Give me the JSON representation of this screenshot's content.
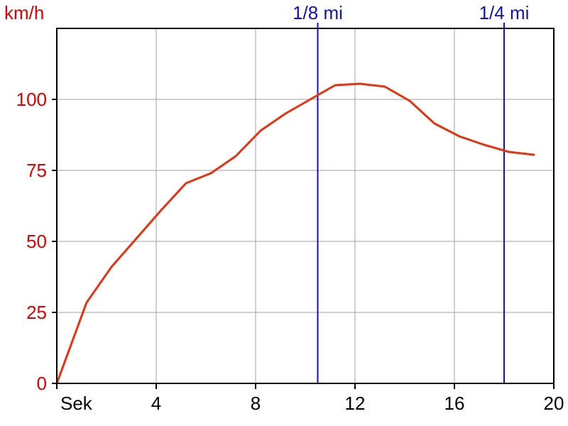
{
  "chart_data": {
    "type": "line",
    "y_unit_label": "km/h",
    "x_unit_label": "Sek",
    "xlim": [
      0,
      20
    ],
    "ylim": [
      0,
      125
    ],
    "x_ticks": [
      {
        "value": 4,
        "label": "4"
      },
      {
        "value": 8,
        "label": "8"
      },
      {
        "value": 12,
        "label": "12"
      },
      {
        "value": 16,
        "label": "16"
      },
      {
        "value": 20,
        "label": "20"
      }
    ],
    "y_ticks": [
      {
        "value": 0,
        "label": "0"
      },
      {
        "value": 25,
        "label": "25"
      },
      {
        "value": 50,
        "label": "50"
      },
      {
        "value": 75,
        "label": "75"
      },
      {
        "value": 100,
        "label": "100"
      }
    ],
    "grid": true,
    "markers": [
      {
        "x": 10.5,
        "label": "1/8 mi"
      },
      {
        "x": 18.0,
        "label": "1/4 mi"
      }
    ],
    "series": [
      {
        "x": [
          0,
          1.2,
          2.2,
          3.2,
          4.2,
          5.2,
          6.2,
          7.2,
          8.2,
          9.2,
          10.2,
          11.2,
          12.2,
          13.2,
          14.2,
          15.2,
          16.2,
          17.2,
          18.2,
          19.2
        ],
        "y": [
          0,
          28.5,
          41,
          51,
          61,
          70.5,
          74,
          80,
          89,
          95,
          100,
          105,
          105.5,
          104.5,
          99.5,
          91.5,
          87,
          84,
          81.5,
          80.5
        ]
      }
    ],
    "colors": {
      "axis_labels": "#e00000",
      "x_labels": "#000000",
      "series": "#e8320f",
      "markers": "#1010c8",
      "grid": "#a0a0a0",
      "frame": "#000000"
    }
  }
}
